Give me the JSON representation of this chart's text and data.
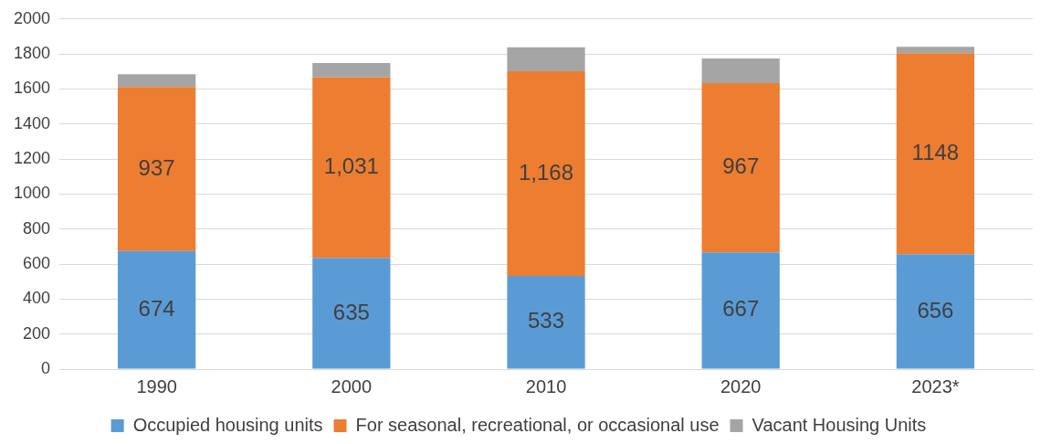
{
  "chart_data": {
    "type": "bar",
    "stacked": true,
    "categories": [
      "1990",
      "2000",
      "2010",
      "2020",
      "2023*"
    ],
    "series": [
      {
        "name": "Occupied housing units",
        "color": "#5b9bd5",
        "values": [
          674,
          635,
          533,
          667,
          656
        ],
        "value_labels": [
          "674",
          "635",
          "533",
          "667",
          "656"
        ]
      },
      {
        "name": "For seasonal, recreational, or occasional use",
        "color": "#ed7d31",
        "values": [
          937,
          1031,
          1168,
          967,
          1148
        ],
        "value_labels": [
          "937",
          "1,031",
          "1,168",
          "967",
          "1148"
        ]
      },
      {
        "name": "Vacant Housing Units",
        "color": "#a5a5a5",
        "values": [
          74,
          83,
          138,
          141,
          37
        ]
      }
    ],
    "ylim": [
      0,
      2000
    ],
    "yticks": [
      0,
      200,
      400,
      600,
      800,
      1000,
      1200,
      1400,
      1600,
      1800,
      2000
    ],
    "grid": "y",
    "legend": "bottom"
  }
}
